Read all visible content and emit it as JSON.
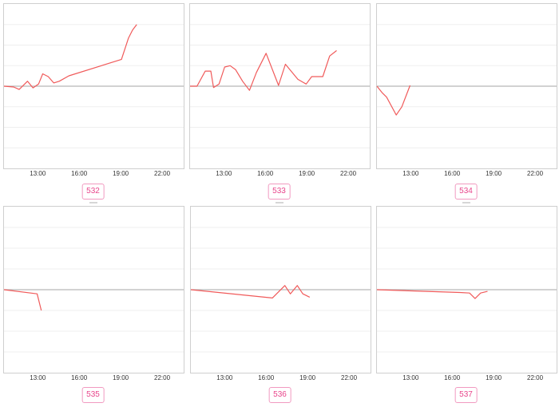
{
  "panels": [
    {
      "id": "532",
      "x_labels": [
        "13:00",
        "16:00",
        "19:00",
        "22:00"
      ],
      "chart_data": {
        "type": "line",
        "x_domain_hours": [
          10.5,
          23.5
        ],
        "series": [
          {
            "color": "#f05a5a",
            "points": [
              [
                10.5,
                0
              ],
              [
                11.2,
                -0.3
              ],
              [
                11.6,
                -1.2
              ],
              [
                12.2,
                1.8
              ],
              [
                12.6,
                -0.6
              ],
              [
                13.0,
                0.8
              ],
              [
                13.3,
                4.5
              ],
              [
                13.7,
                3.5
              ],
              [
                14.1,
                1.2
              ],
              [
                14.5,
                1.8
              ],
              [
                15.2,
                3.8
              ],
              [
                19.0,
                9.8
              ],
              [
                19.5,
                17.5
              ],
              [
                19.8,
                20.5
              ],
              [
                20.1,
                22.5
              ]
            ]
          }
        ],
        "ylim": [
          -30,
          30
        ]
      }
    },
    {
      "id": "533",
      "x_labels": [
        "13:00",
        "16:00",
        "19:00",
        "22:00"
      ],
      "chart_data": {
        "type": "line",
        "x_domain_hours": [
          10.5,
          23.5
        ],
        "series": [
          {
            "color": "#f05a5a",
            "points": [
              [
                10.5,
                0
              ],
              [
                11.0,
                0
              ],
              [
                11.6,
                5.5
              ],
              [
                12.0,
                5.5
              ],
              [
                12.2,
                -0.5
              ],
              [
                12.6,
                0.8
              ],
              [
                13.0,
                7.0
              ],
              [
                13.4,
                7.5
              ],
              [
                13.8,
                6.0
              ],
              [
                14.3,
                1.8
              ],
              [
                14.8,
                -1.5
              ],
              [
                15.3,
                5.0
              ],
              [
                16.0,
                12.0
              ],
              [
                16.9,
                0.3
              ],
              [
                17.4,
                8.0
              ],
              [
                18.3,
                2.5
              ],
              [
                18.9,
                0.8
              ],
              [
                19.3,
                3.5
              ],
              [
                20.1,
                3.5
              ],
              [
                20.6,
                11.0
              ],
              [
                21.1,
                13.0
              ]
            ]
          }
        ],
        "ylim": [
          -30,
          30
        ]
      }
    },
    {
      "id": "534",
      "x_labels": [
        "13:00",
        "16:00",
        "19:00",
        "22:00"
      ],
      "chart_data": {
        "type": "line",
        "x_domain_hours": [
          10.5,
          23.5
        ],
        "series": [
          {
            "color": "#f05a5a",
            "points": [
              [
                10.5,
                0
              ],
              [
                10.9,
                -2.5
              ],
              [
                11.2,
                -4.0
              ],
              [
                11.9,
                -10.5
              ],
              [
                12.3,
                -7.5
              ],
              [
                12.9,
                0.3
              ]
            ]
          }
        ],
        "ylim": [
          -30,
          30
        ]
      }
    },
    {
      "id": "535",
      "x_labels": [
        "13:00",
        "16:00",
        "19:00",
        "22:00"
      ],
      "chart_data": {
        "type": "line",
        "x_domain_hours": [
          10.5,
          23.5
        ],
        "series": [
          {
            "color": "#f05a5a",
            "points": [
              [
                10.5,
                0
              ],
              [
                12.9,
                -1.5
              ],
              [
                13.2,
                -7.5
              ]
            ]
          }
        ],
        "ylim": [
          -30,
          30
        ]
      }
    },
    {
      "id": "536",
      "x_labels": [
        "13:00",
        "16:00",
        "19:00",
        "22:00"
      ],
      "chart_data": {
        "type": "line",
        "x_domain_hours": [
          10.5,
          23.5
        ],
        "series": [
          {
            "color": "#f05a5a",
            "points": [
              [
                10.5,
                0
              ],
              [
                16.4,
                -3.0
              ],
              [
                17.3,
                1.5
              ],
              [
                17.7,
                -1.5
              ],
              [
                18.2,
                1.5
              ],
              [
                18.6,
                -1.5
              ],
              [
                19.1,
                -2.7
              ]
            ]
          }
        ],
        "ylim": [
          -30,
          30
        ]
      }
    },
    {
      "id": "537",
      "x_labels": [
        "13:00",
        "16:00",
        "19:00",
        "22:00"
      ],
      "chart_data": {
        "type": "line",
        "x_domain_hours": [
          10.5,
          23.5
        ],
        "series": [
          {
            "color": "#f05a5a",
            "points": [
              [
                10.5,
                0
              ],
              [
                16.5,
                -1.0
              ],
              [
                17.2,
                -1.2
              ],
              [
                17.6,
                -3.2
              ],
              [
                18.0,
                -1.2
              ],
              [
                18.5,
                -0.6
              ]
            ]
          }
        ],
        "ylim": [
          -30,
          30
        ]
      }
    }
  ]
}
